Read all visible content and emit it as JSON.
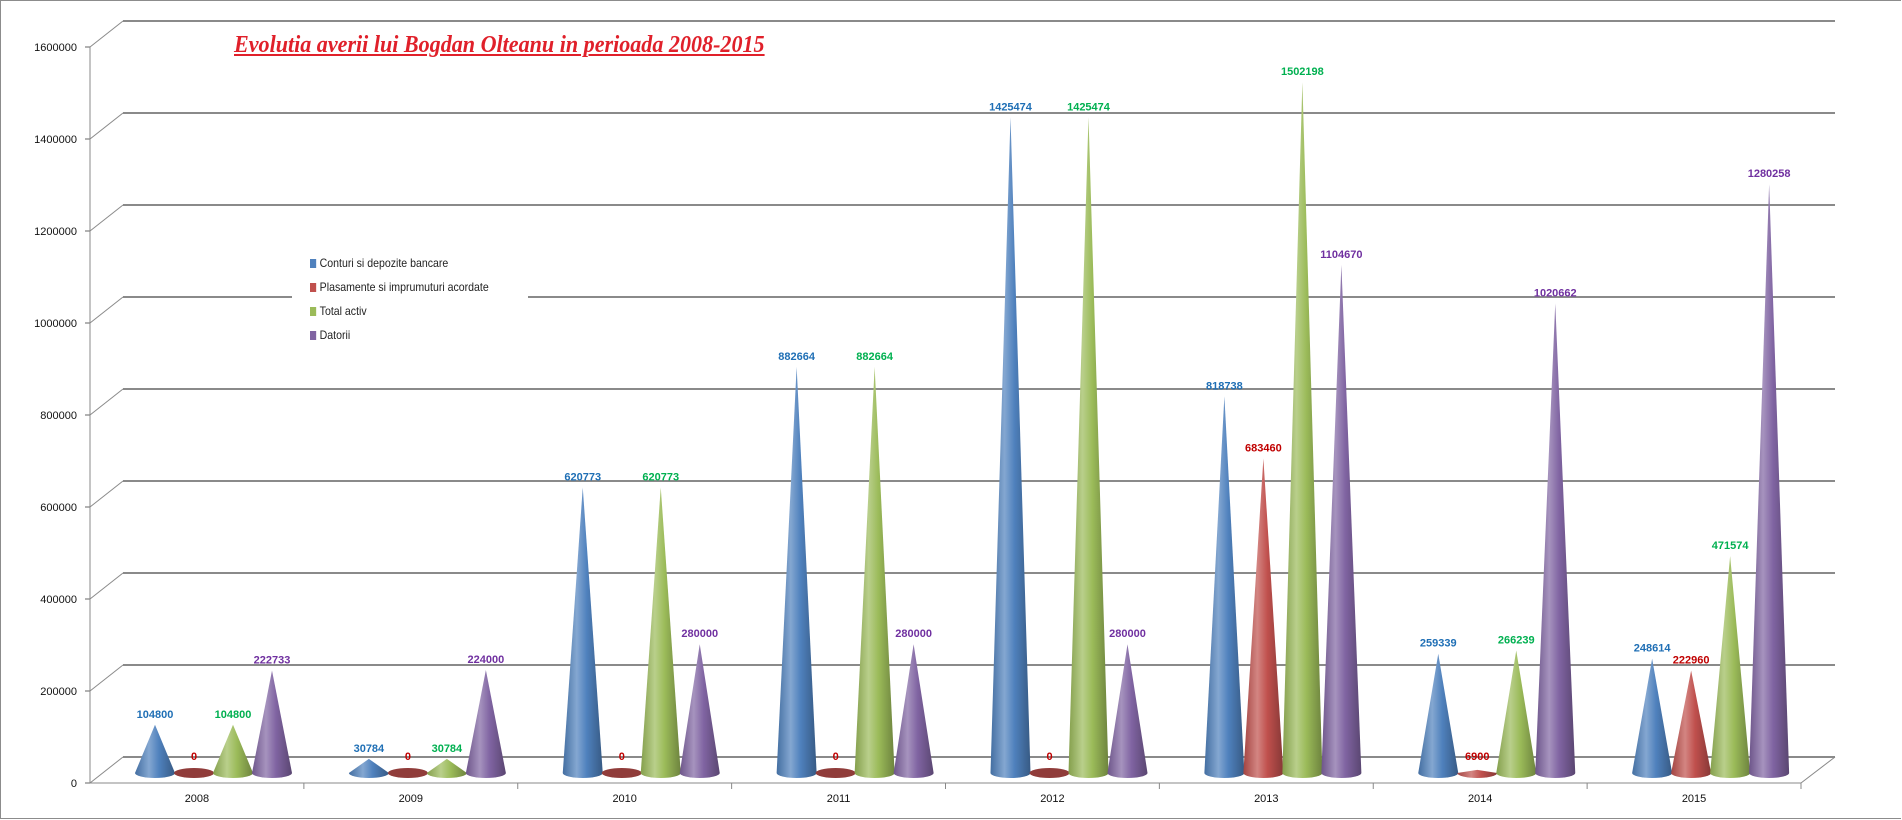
{
  "chart_data": {
    "type": "bar",
    "subtype": "3d-cone",
    "title": "Evolutia averii lui Bogdan Olteanu in perioada 2008-2015",
    "xlabel": "",
    "ylabel": "",
    "ylim": [
      0,
      1600000
    ],
    "yticks": [
      "0",
      "200000",
      "400000",
      "600000",
      "800000",
      "1000000",
      "1200000",
      "1400000",
      "1600000"
    ],
    "grid": true,
    "legend_position": "left-center",
    "categories": [
      "2008",
      "2009",
      "2010",
      "2011",
      "2012",
      "2013",
      "2014",
      "2015"
    ],
    "series": [
      {
        "name": "Conturi si depozite bancare",
        "color": "#4f81bd",
        "label_color": "#1f6fb5",
        "values": [
          104800,
          30784,
          620773,
          882664,
          1425474,
          818738,
          259339,
          248614
        ]
      },
      {
        "name": "Plasamente si imprumuturi acordate",
        "color": "#c0504d",
        "label_color": "#c00000",
        "values": [
          0,
          0,
          0,
          0,
          0,
          683460,
          6900,
          222960
        ]
      },
      {
        "name": "Total activ",
        "color": "#9bbb59",
        "label_color": "#00b050",
        "values": [
          104800,
          30784,
          620773,
          882664,
          1425474,
          1502198,
          266239,
          471574
        ]
      },
      {
        "name": "Datorii",
        "color": "#8064a2",
        "label_color": "#7030a0",
        "values": [
          222733,
          224000,
          280000,
          280000,
          280000,
          1104670,
          1020662,
          1280258
        ]
      }
    ]
  }
}
